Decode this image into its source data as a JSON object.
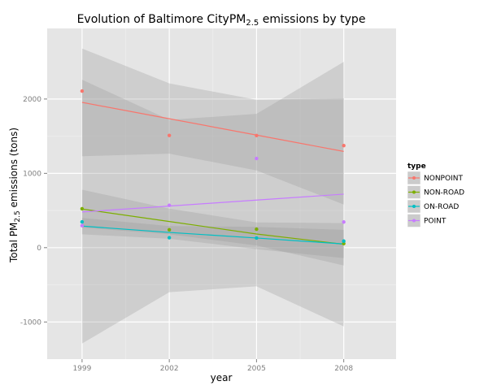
{
  "chart_data": {
    "type": "scatter",
    "title_prefix": "Evolution of Baltimore City",
    "title_pm": "PM",
    "title_sub": "2.5",
    "title_suffix": " emissions by type",
    "xlabel": "year",
    "ylabel_prefix": "Total PM",
    "ylabel_sub": "2.5",
    "ylabel_suffix": " emissions (tons)",
    "x_ticks": [
      1999,
      2002,
      2005,
      2008
    ],
    "y_ticks": [
      -1000,
      0,
      1000,
      2000
    ],
    "xlim": [
      1997.8,
      2009.8
    ],
    "ylim": [
      -1500,
      2950
    ],
    "legend_title": "type",
    "legend_position": "right",
    "grid": true,
    "series": [
      {
        "name": "NONPOINT",
        "color": "#F8766D",
        "x": [
          1999,
          2002,
          2005,
          2008
        ],
        "y": [
          2107,
          1510,
          1509,
          1373
        ],
        "fit": [
          1955,
          1735,
          1515,
          1295
        ],
        "ci_low": [
          1230,
          1265,
          1040,
          580
        ],
        "ci_high": [
          2680,
          2210,
          1990,
          2010
        ]
      },
      {
        "name": "NON-ROAD",
        "color": "#7CAE00",
        "x": [
          1999,
          2002,
          2005,
          2008
        ],
        "y": [
          523,
          240,
          248,
          55
        ],
        "fit": [
          520,
          352,
          184,
          46
        ],
        "ci_low": [
          270,
          180,
          30,
          -240
        ],
        "ci_high": [
          780,
          525,
          340,
          330
        ]
      },
      {
        "name": "ON-ROAD",
        "color": "#00BFC4",
        "x": [
          1999,
          2002,
          2005,
          2008
        ],
        "y": [
          347,
          134,
          130,
          88
        ],
        "fit": [
          290,
          205,
          130,
          50
        ],
        "ci_low": [
          180,
          120,
          -20,
          -140
        ],
        "ci_high": [
          400,
          290,
          280,
          240
        ]
      },
      {
        "name": "POINT",
        "color": "#C77CFF",
        "x": [
          1999,
          2002,
          2005,
          2008
        ],
        "y": [
          296,
          570,
          1200,
          345
        ],
        "fit": [
          480,
          560,
          640,
          720
        ],
        "ci_low": [
          -1290,
          -600,
          -520,
          -1060
        ],
        "ci_high": [
          2260,
          1720,
          1800,
          2500
        ]
      }
    ]
  }
}
